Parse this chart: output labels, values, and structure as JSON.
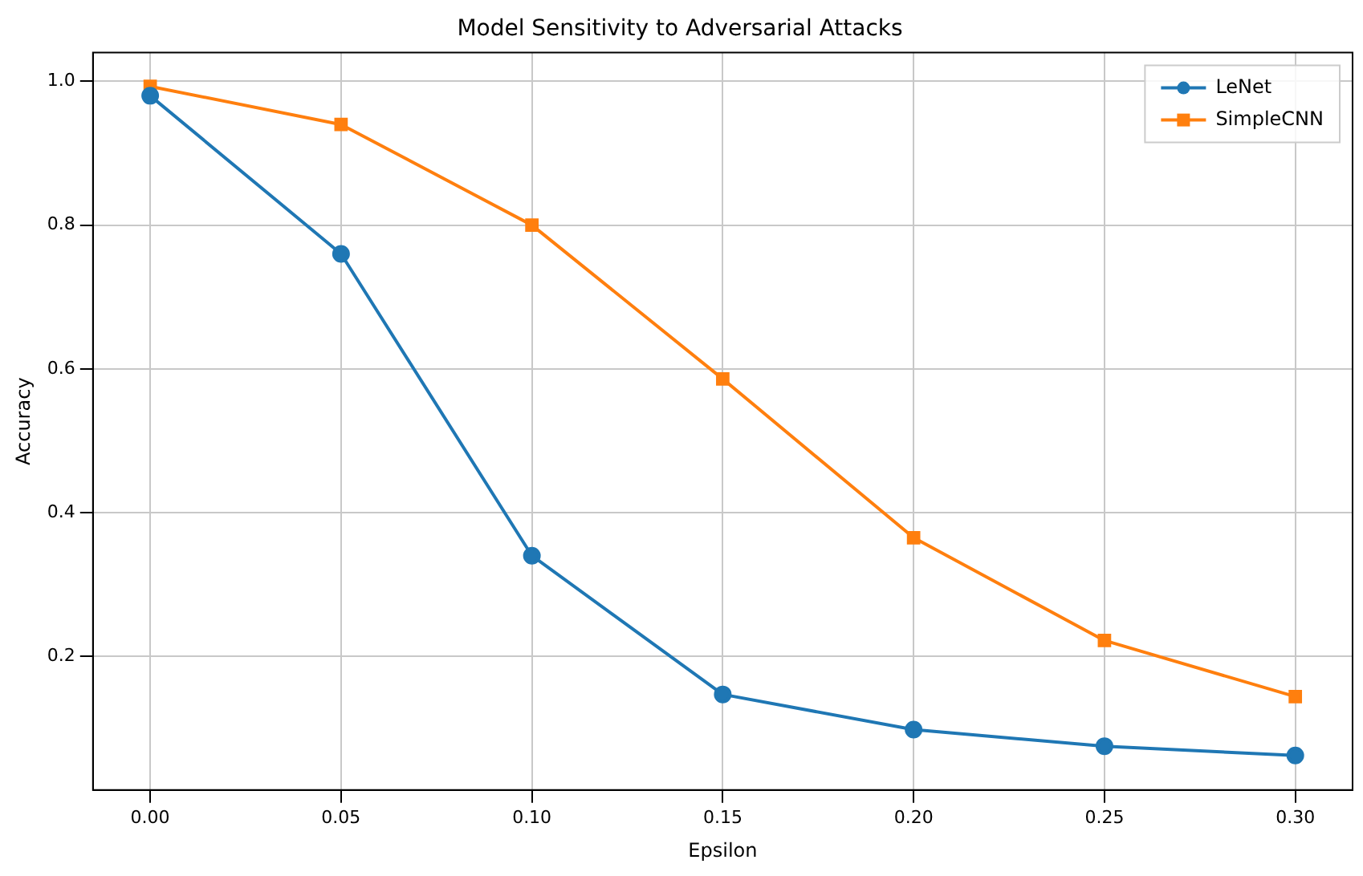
{
  "chart_data": {
    "type": "line",
    "title": "Model Sensitivity to Adversarial Attacks",
    "xlabel": "Epsilon",
    "ylabel": "Accuracy",
    "x": [
      0,
      0.05,
      0.1,
      0.15,
      0.2,
      0.25,
      0.3
    ],
    "series": [
      {
        "name": "LeNet",
        "color": "#1f77b4",
        "marker": "circle",
        "values": [
          0.98,
          0.76,
          0.34,
          0.147,
          0.098,
          0.075,
          0.062
        ]
      },
      {
        "name": "SimpleCNN",
        "color": "#ff7f0e",
        "marker": "square",
        "values": [
          0.993,
          0.94,
          0.8,
          0.586,
          0.365,
          0.222,
          0.144
        ]
      }
    ],
    "xlim": [
      -0.015,
      0.315
    ],
    "xticks": [
      {
        "value": 0,
        "label": "0.00"
      },
      {
        "value": 0.05,
        "label": "0.05"
      },
      {
        "value": 0.1,
        "label": "0.10"
      },
      {
        "value": 0.15,
        "label": "0.15"
      },
      {
        "value": 0.2,
        "label": "0.20"
      },
      {
        "value": 0.25,
        "label": "0.25"
      },
      {
        "value": 0.3,
        "label": "0.30"
      }
    ],
    "ylim": [
      0.014,
      1.04
    ],
    "yticks": [
      {
        "value": 0.2,
        "label": "0.2"
      },
      {
        "value": 0.4,
        "label": "0.4"
      },
      {
        "value": 0.6,
        "label": "0.6"
      },
      {
        "value": 0.8,
        "label": "0.8"
      },
      {
        "value": 1.0,
        "label": "1.0"
      }
    ],
    "grid": true,
    "legend": "top right",
    "line_style": "solid"
  }
}
